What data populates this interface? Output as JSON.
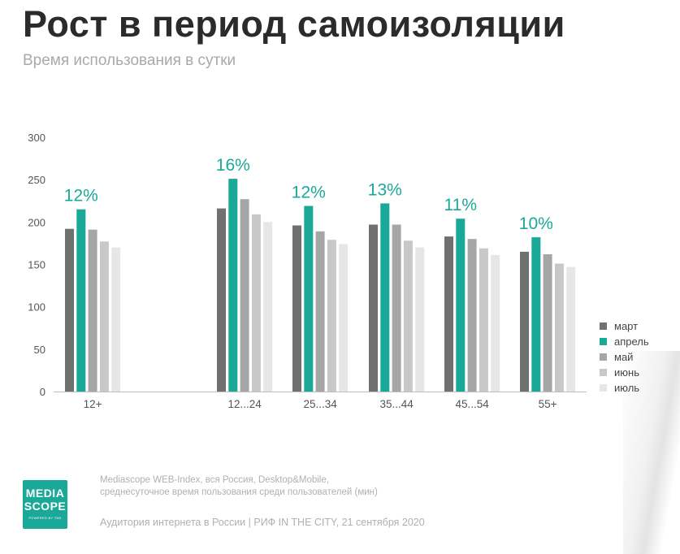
{
  "header": {
    "title": "Рост в период самоизоляции",
    "subtitle": "Время использования в сутки"
  },
  "colors": {
    "march": "#707070",
    "april": "#1aa899",
    "may": "#a6a6a6",
    "june": "#c8c8c8",
    "july": "#e6e6e6",
    "growth_label": "#1aa899"
  },
  "chart_data": {
    "type": "bar",
    "categories": [
      "12+",
      "12...24",
      "25...34",
      "35...44",
      "45...54",
      "55+"
    ],
    "series": [
      {
        "name": "март",
        "values": [
          192,
          216,
          196,
          197,
          183,
          165
        ]
      },
      {
        "name": "апрель",
        "values": [
          215,
          251,
          219,
          222,
          204,
          182
        ]
      },
      {
        "name": "май",
        "values": [
          191,
          227,
          189,
          197,
          180,
          162
        ]
      },
      {
        "name": "июнь",
        "values": [
          177,
          209,
          179,
          178,
          169,
          151
        ]
      },
      {
        "name": "июль",
        "values": [
          170,
          200,
          174,
          170,
          161,
          147
        ]
      }
    ],
    "growth_labels": [
      "12%",
      "16%",
      "12%",
      "13%",
      "11%",
      "10%"
    ],
    "yticks": [
      0,
      50,
      100,
      150,
      200,
      250,
      300
    ],
    "ylim": [
      0,
      300
    ],
    "legend_position": "right",
    "grid": false
  },
  "footer": {
    "source_line1": "Mediascope WEB-Index, вся Россия, Desktop&Mobile,",
    "source_line2": "среднесуточное время пользования среди пользователей (мин)",
    "event": "Аудитория интернета в России | РИФ IN THE CITY, 21 сентября 2020"
  },
  "logo": {
    "line1": "MEDIA",
    "line2": "SCOPE",
    "tagline": "POWERED BY TNS"
  }
}
